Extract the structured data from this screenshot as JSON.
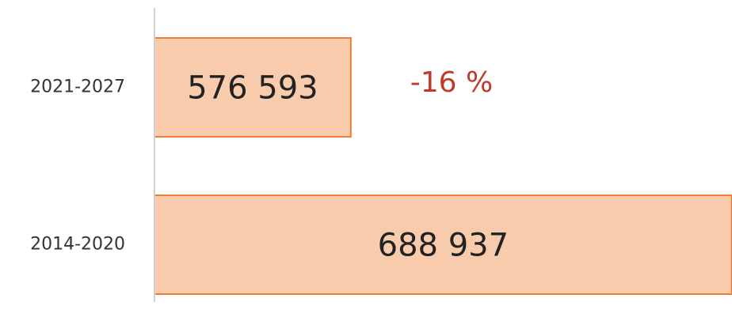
{
  "chart_data": {
    "type": "hbar",
    "categories": [
      "2021-2027",
      "2014-2020"
    ],
    "values": [
      576593,
      688937
    ],
    "value_labels": [
      "576 593",
      "688 937"
    ],
    "annotation": "-16 %",
    "color": "#f8cbad",
    "edge_color": "#ed7d31",
    "annotation_color": "#c0392b",
    "xlim": [
      518700,
      689000
    ]
  }
}
